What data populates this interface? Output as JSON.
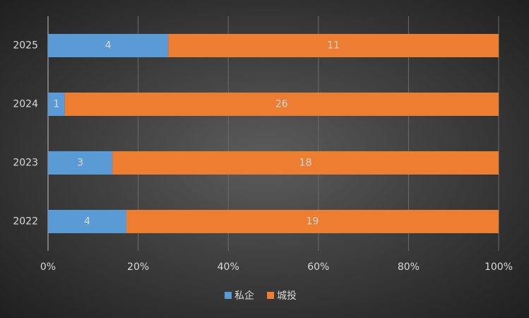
{
  "chart_data": {
    "type": "bar",
    "orientation": "horizontal",
    "stacking": "percent",
    "categories": [
      "2022",
      "2023",
      "2024",
      "2025"
    ],
    "series": [
      {
        "name": "私企",
        "color": "#5b9bd5",
        "values": [
          4,
          3,
          1,
          4
        ]
      },
      {
        "name": "城投",
        "color": "#ed7d31",
        "values": [
          19,
          18,
          26,
          11
        ]
      }
    ],
    "xlim": [
      0,
      100
    ],
    "xticks": [
      {
        "value": 0,
        "label": "0%"
      },
      {
        "value": 20,
        "label": "20%"
      },
      {
        "value": 40,
        "label": "40%"
      },
      {
        "value": 60,
        "label": "60%"
      },
      {
        "value": 80,
        "label": "80%"
      },
      {
        "value": 100,
        "label": "100%"
      }
    ],
    "grid": true,
    "legend": "bottom",
    "data_labels": true
  }
}
